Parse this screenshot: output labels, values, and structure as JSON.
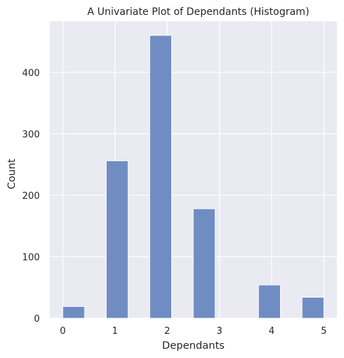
{
  "chart_data": {
    "type": "bar",
    "title": "A Univariate Plot of Dependants (Histogram)",
    "xlabel": "Dependants",
    "ylabel": "Count",
    "bins": [
      {
        "x_start": 0.0,
        "x_end": 0.4167,
        "count": 19
      },
      {
        "x_start": 0.8333,
        "x_end": 1.25,
        "count": 256
      },
      {
        "x_start": 1.6667,
        "x_end": 2.0833,
        "count": 460
      },
      {
        "x_start": 2.5,
        "x_end": 2.9167,
        "count": 178
      },
      {
        "x_start": 3.75,
        "x_end": 4.1667,
        "count": 54
      },
      {
        "x_start": 4.5833,
        "x_end": 5.0,
        "count": 34
      }
    ],
    "xticks": [
      0,
      1,
      2,
      3,
      4,
      5
    ],
    "yticks": [
      0,
      100,
      200,
      300,
      400
    ],
    "xlim": [
      -0.25,
      5.25
    ],
    "ylim": [
      0,
      483
    ],
    "bar_color": "#6f8dc3",
    "background_color": "#eaeaf2",
    "grid": true
  }
}
